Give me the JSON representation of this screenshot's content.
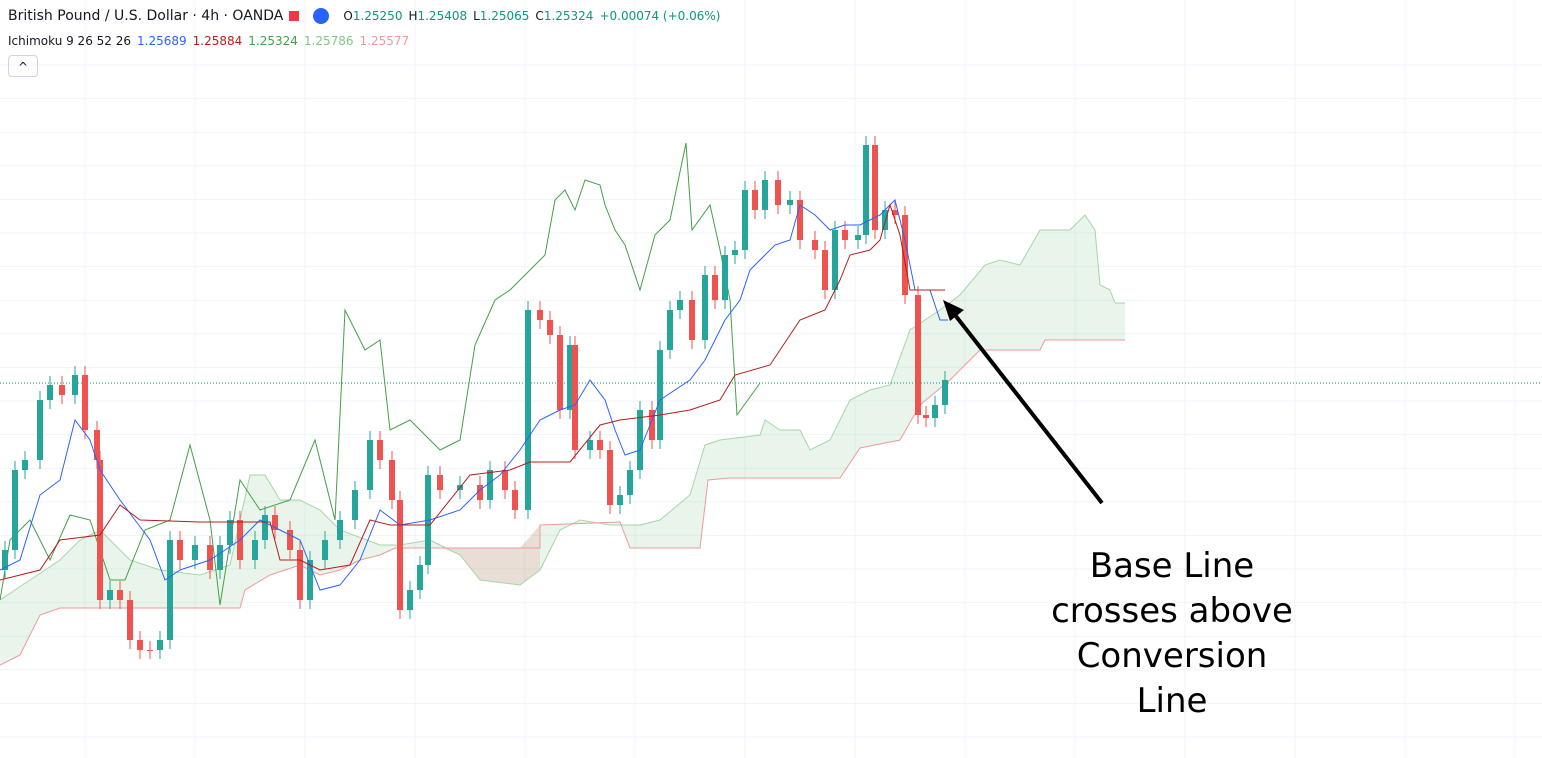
{
  "header": {
    "symbol": "British Pound / U.S. Dollar · 4h · OANDA",
    "ohlc": [
      {
        "label": "O",
        "value": "1.25250"
      },
      {
        "label": "H",
        "value": "1.25408"
      },
      {
        "label": "L",
        "value": "1.25065"
      },
      {
        "label": "C",
        "value": "1.25324"
      }
    ],
    "change": "+0.00074 (+0.06%)"
  },
  "indicator": {
    "name": "Ichimoku 9 26 52 26",
    "values": [
      "1.25689",
      "1.25884",
      "1.25324",
      "1.25786",
      "1.25577"
    ]
  },
  "annotation": {
    "lines": [
      "Base Line",
      "crosses above",
      "Conversion",
      "Line"
    ]
  }
}
